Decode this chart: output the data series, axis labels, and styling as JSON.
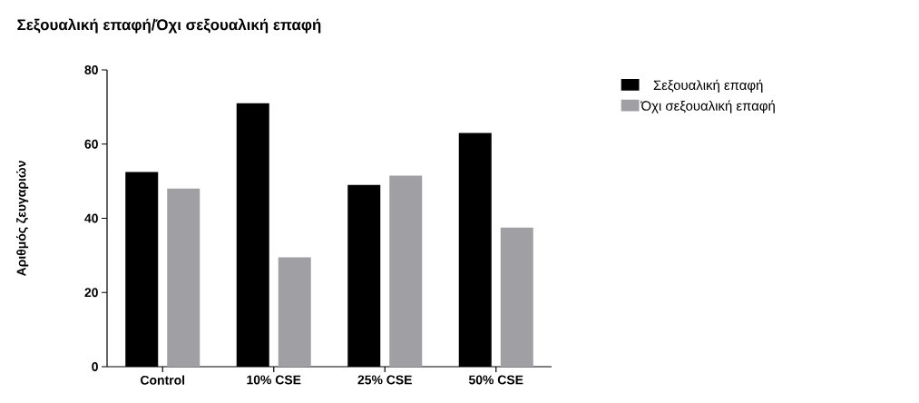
{
  "chart_data": {
    "type": "bar",
    "title": "Σεξουαλική επαφή/Όχι σεξουαλική επαφή",
    "ylabel": "Αριθμός ζευγαριών",
    "categories": [
      "Control",
      "10% CSE",
      "25% CSE",
      "50% CSE"
    ],
    "series": [
      {
        "name": "Σεξουαλική επαφή",
        "color": "#000000",
        "values": [
          52.5,
          71,
          49,
          63
        ]
      },
      {
        "name": "Όχι σεξουαλική επαφή",
        "color": "#a0a0a4",
        "values": [
          48,
          29.5,
          51.5,
          37.5
        ]
      }
    ],
    "ylim": [
      0,
      80
    ],
    "yticks": [
      0,
      20,
      40,
      60,
      80
    ],
    "legend": "top right"
  }
}
